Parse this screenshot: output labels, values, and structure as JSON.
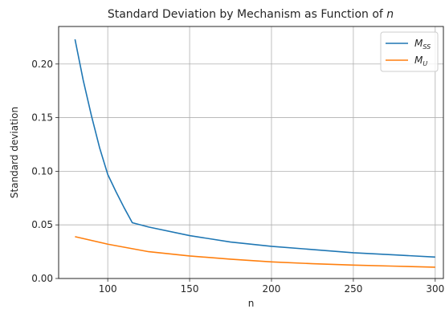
{
  "chart_data": {
    "type": "line",
    "title": "Standard Deviation by Mechanism as Function of n",
    "xlabel": "n",
    "ylabel": "Standard deviation",
    "xlim": [
      70,
      305
    ],
    "ylim": [
      0,
      0.235
    ],
    "xticks": [
      100,
      150,
      200,
      250,
      300
    ],
    "yticks": [
      0.0,
      0.05,
      0.1,
      0.15,
      0.2
    ],
    "xtick_labels": [
      "100",
      "150",
      "200",
      "250",
      "300"
    ],
    "ytick_labels": [
      "0.00",
      "0.05",
      "0.10",
      "0.15",
      "0.20"
    ],
    "grid": true,
    "legend_position": "top-right",
    "series": [
      {
        "name": "M_SS",
        "legend_main": "M",
        "legend_sub": "SS",
        "color": "#1f77b4",
        "x": [
          80,
          85,
          90,
          95,
          100,
          105,
          110,
          115,
          125,
          150,
          175,
          200,
          225,
          250,
          275,
          300
        ],
        "y": [
          0.223,
          0.185,
          0.152,
          0.122,
          0.097,
          0.081,
          0.066,
          0.052,
          0.048,
          0.04,
          0.034,
          0.03,
          0.027,
          0.024,
          0.022,
          0.02
        ]
      },
      {
        "name": "M_U",
        "legend_main": "M",
        "legend_sub": "U",
        "color": "#ff7f0e",
        "x": [
          80,
          100,
          125,
          150,
          175,
          200,
          225,
          250,
          275,
          300
        ],
        "y": [
          0.039,
          0.032,
          0.025,
          0.021,
          0.018,
          0.0155,
          0.0138,
          0.0125,
          0.0115,
          0.0105
        ]
      }
    ]
  }
}
